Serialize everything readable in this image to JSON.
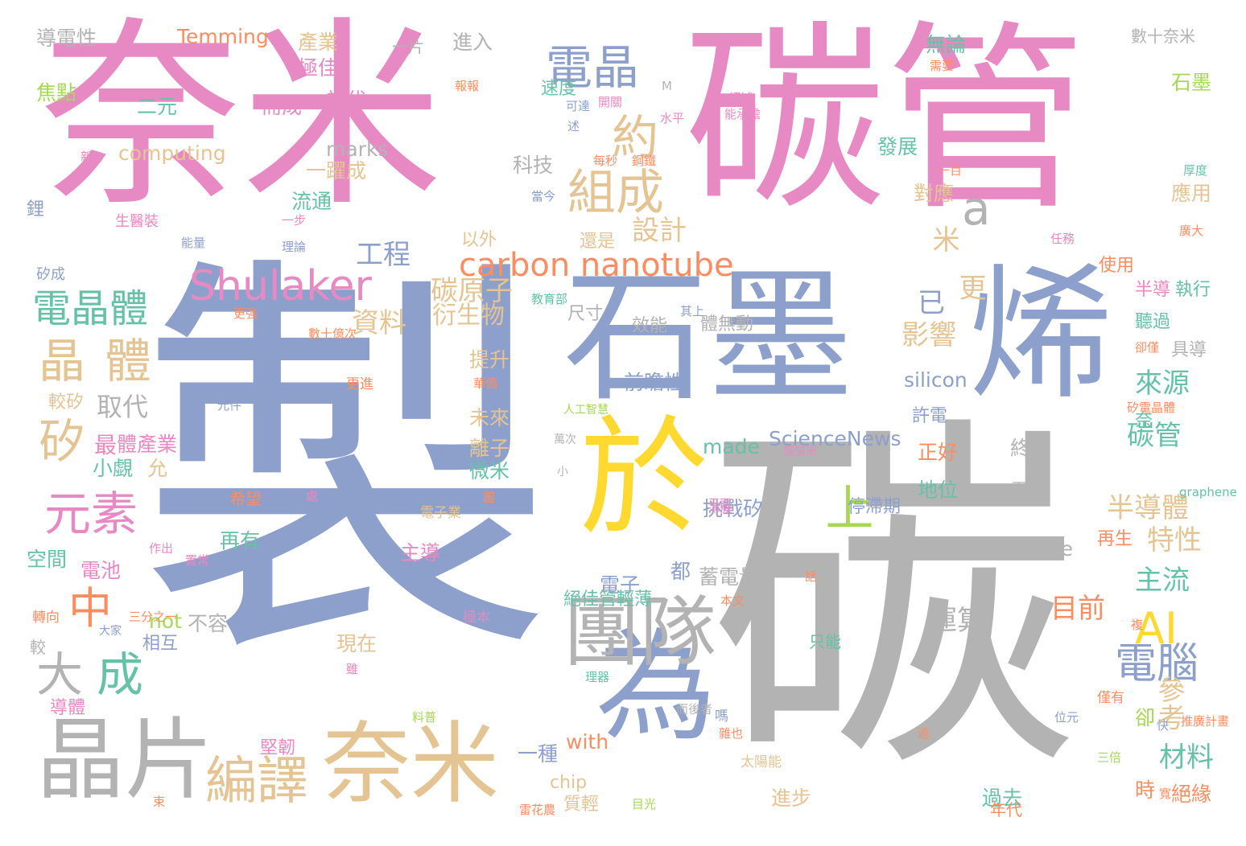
{
  "colors": {
    "pink": "#e78ac3",
    "blue": "#8da0cb",
    "gray": "#b3b3b3",
    "tan": "#e5c494",
    "green": "#66c2a5",
    "orange": "#fc8d62",
    "lime": "#a6d854",
    "yellow": "#ffd92f"
  },
  "words": [
    "奈米",
    "碳管",
    "製",
    "碳",
    "石墨",
    "烯",
    "於",
    "為",
    "晶片",
    "奈米",
    "團隊",
    "Shulaker",
    "電晶體",
    "組成",
    "carbon nanotube",
    "電晶",
    "約",
    "晶",
    "體",
    "元素",
    "矽",
    "大",
    "成",
    "中",
    "AI",
    "電腦",
    "編譯",
    "上",
    "a",
    "工程",
    "設計",
    "資料",
    "碳原子",
    "衍生物",
    "影響",
    "已",
    "更",
    "米",
    "半導體",
    "特性",
    "來源",
    "碳管",
    "主流",
    "參考",
    "材料",
    "目前",
    "運算",
    "Temming",
    "導電性",
    "computing",
    "marks",
    "科技",
    "一躍成",
    "流通",
    "對應",
    "發展",
    "應用",
    "石墨",
    "產業",
    "無論",
    "進入",
    "一片",
    "數十奈米",
    "焦點",
    "二元",
    "而成",
    "當代",
    "極佳",
    "取代",
    "最",
    "小覷",
    "允",
    "體產業",
    "電池",
    "空間",
    "再有",
    "主導",
    "現在",
    "提升",
    "未來",
    "離子",
    "微米",
    "前瞻性",
    "silicon",
    "ScienceNews",
    "made",
    "not",
    "不容",
    "都",
    "蓄電量",
    "挑戰矽",
    "電子",
    "milestone",
    "正好",
    "地位",
    "終",
    "卻",
    "時",
    "絕緣",
    "過去",
    "進步",
    "一種",
    "with",
    "chip",
    "質輕",
    "堅韌",
    "相互",
    "導體",
    "絕佳管輕薄",
    "再生",
    "電性",
    "停滯期",
    "許電",
    "奈",
    "半導",
    "執行",
    "聽過",
    "具導",
    "體無動",
    "效能",
    "尺寸",
    "還是",
    "以外",
    "使用",
    "鋰",
    "生醫裝",
    "一步",
    "能量",
    "理論",
    "矽成",
    "更強",
    "數十億次",
    "較矽",
    "元件",
    "更進",
    "華僑",
    "人工智慧",
    "萬次",
    "小",
    "薄膜",
    "處",
    "圖",
    "電子業",
    "希望",
    "作出",
    "置常",
    "轉向",
    "三分之一",
    "大家",
    "較",
    "極本",
    "雖",
    "料普",
    "理器",
    "而後者",
    "嗎",
    "雜也",
    "太陽能",
    "雷花農",
    "束",
    "目光",
    "年代",
    "快",
    "推廣計畫",
    "三倍",
    "寬",
    "僅有",
    "位元",
    "過",
    "只能",
    "複",
    "話",
    "本文",
    "一片片",
    "平面",
    "個奈米",
    "矽電晶體",
    "graphene",
    "鋼鐵",
    "每秒",
    "一百",
    "厚度",
    "述",
    "可達",
    "速度",
    "報報",
    "開關",
    "M",
    "水平",
    "能承擔",
    "領域",
    "需要",
    "任務",
    "廣大",
    "當今",
    "教育部",
    "其上",
    "新",
    "卻僅",
    "擠",
    "展出",
    "輔助"
  ]
}
